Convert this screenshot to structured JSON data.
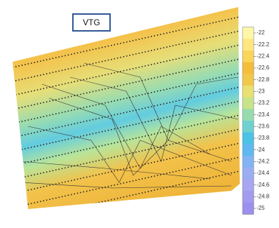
{
  "chart_data": {
    "type": "contour",
    "title": "VTG",
    "colorbar": {
      "lim": [
        -22,
        -25
      ],
      "ticks": [
        -22,
        -22.2,
        -22.4,
        -22.6,
        -22.8,
        -23,
        -23.2,
        -23.4,
        -23.6,
        -23.8,
        -24,
        -24.2,
        -24.4,
        -24.6,
        -24.8,
        -25
      ],
      "colors": [
        "#fff7a8",
        "#ffe680",
        "#fbd45a",
        "#f5bd3a",
        "#f2c84a",
        "#e8e070",
        "#c8e48a",
        "#98dcae",
        "#6fd0d0",
        "#4cc2e6",
        "#60b8f0",
        "#82b4f4",
        "#9aaef4",
        "#a8a6f2",
        "#a49af0",
        "#9c90ee"
      ]
    }
  }
}
